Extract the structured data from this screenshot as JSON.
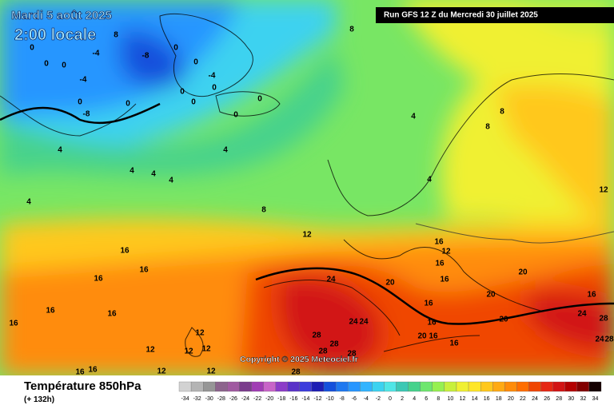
{
  "header": {
    "date": "Mardi 5 août 2025",
    "time": "2:00 locale",
    "run": "Run GFS 12 Z du Mercredi 30 juillet 2025"
  },
  "footer": {
    "title": "Température 850hPa",
    "lead": "(+ 132h)",
    "copyright": "Copyright © 2025 Meteociel.fr"
  },
  "legend": {
    "labels": [
      -34,
      -32,
      -30,
      -28,
      -26,
      -24,
      -22,
      -20,
      -18,
      -16,
      -14,
      -12,
      -10,
      -8,
      -6,
      -4,
      -2,
      0,
      2,
      4,
      6,
      8,
      10,
      12,
      14,
      16,
      18,
      20,
      22,
      24,
      26,
      28,
      30,
      32,
      34
    ],
    "colors": [
      "#d2d2d2",
      "#b4b4b4",
      "#969696",
      "#8c648c",
      "#a05aa0",
      "#7a3c8c",
      "#a03cb4",
      "#c864c8",
      "#8c3cc8",
      "#5a32c8",
      "#3c3cdc",
      "#1e1eb4",
      "#1450dc",
      "#1e78f0",
      "#2896ff",
      "#32b4ff",
      "#3cd2f0",
      "#50e6e6",
      "#3cc8b4",
      "#46d28c",
      "#6ee66e",
      "#96f050",
      "#c8f03c",
      "#f0f032",
      "#ffe628",
      "#ffc81e",
      "#ffaa14",
      "#ff8c0a",
      "#ff6e00",
      "#f04600",
      "#e62814",
      "#d21414",
      "#b40000",
      "#820000",
      "#140000"
    ]
  },
  "contour_labels": [
    8,
    -4,
    -8,
    0,
    0,
    0,
    -4,
    0,
    -8,
    0,
    0,
    0,
    0,
    0,
    -4,
    0,
    0,
    0,
    8,
    4,
    8,
    8,
    4,
    4,
    4,
    4,
    4,
    4,
    8,
    4,
    12,
    12,
    16,
    16,
    16,
    16,
    12,
    16,
    16,
    24,
    20,
    20,
    16,
    16,
    16,
    16,
    16,
    20,
    24,
    24,
    20,
    24,
    28,
    28,
    12,
    12,
    12,
    12,
    16,
    20,
    16,
    16,
    28,
    28,
    28,
    24,
    28,
    16,
    16,
    12,
    12,
    28
  ]
}
